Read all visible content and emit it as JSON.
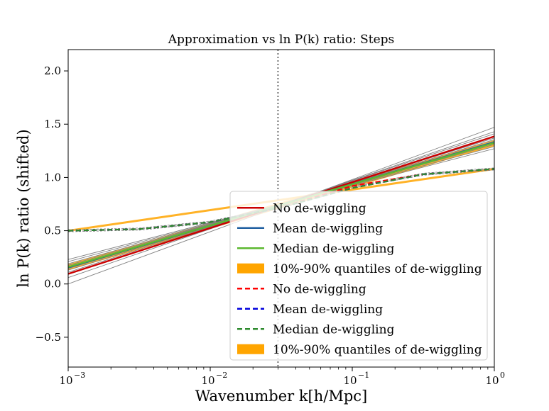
{
  "chart_data": {
    "type": "line",
    "title": "Approximation vs ln P(k) ratio: Steps",
    "xlabel": "Wavenumber k[h/Mpc]",
    "ylabel": "ln P(k) ratio (shifted)",
    "xscale": "log",
    "xlim": [
      0.001,
      1.0
    ],
    "ylim": [
      -0.78,
      2.2
    ],
    "x_ticks": [
      {
        "value": 0.001,
        "base": "10",
        "exp": "−3"
      },
      {
        "value": 0.01,
        "base": "10",
        "exp": "−2"
      },
      {
        "value": 0.1,
        "base": "10",
        "exp": "−1"
      },
      {
        "value": 1.0,
        "base": "10",
        "exp": "0"
      }
    ],
    "y_ticks": [
      {
        "value": -0.5,
        "label": "−0.5"
      },
      {
        "value": 0.0,
        "label": "0.0"
      },
      {
        "value": 0.5,
        "label": "0.5"
      },
      {
        "value": 1.0,
        "label": "1.0"
      },
      {
        "value": 1.5,
        "label": "1.5"
      },
      {
        "value": 2.0,
        "label": "2.0"
      }
    ],
    "vline": {
      "x": 0.03,
      "style": "dotted",
      "color": "#7f7f7f"
    },
    "samples": {
      "color": "#808080",
      "log10k": [
        -3,
        0
      ],
      "lines": [
        [
          0.0,
          1.47
        ],
        [
          0.06,
          1.43
        ],
        [
          0.09,
          1.41
        ],
        [
          0.11,
          1.39
        ],
        [
          0.13,
          1.37
        ],
        [
          0.145,
          1.355
        ],
        [
          0.16,
          1.34
        ],
        [
          0.175,
          1.325
        ],
        [
          0.19,
          1.31
        ],
        [
          0.21,
          1.29
        ],
        [
          0.23,
          1.27
        ]
      ]
    },
    "series": [
      {
        "name": "No de-wiggling",
        "color": "#cc0000",
        "dash": "solid",
        "log10k": [
          -3,
          0
        ],
        "values": [
          0.095,
          1.385
        ]
      },
      {
        "name": "Mean de-wiggling",
        "color": "#1f5fa0",
        "dash": "solid",
        "log10k": [
          -3,
          0
        ],
        "values": [
          0.155,
          1.33
        ]
      },
      {
        "name": "Median de-wiggling",
        "color": "#5cb82f",
        "dash": "solid",
        "log10k": [
          -3,
          0
        ],
        "values": [
          0.16,
          1.325
        ]
      },
      {
        "name": "10%-90% quantiles of de-wiggling",
        "color": "#ffa500",
        "kind": "band",
        "log10k": [
          -3,
          0
        ],
        "lower": [
          0.13,
          1.295
        ],
        "upper": [
          0.185,
          1.35
        ]
      },
      {
        "name": "No de-wiggling",
        "color": "#ff0000",
        "dash": "dashed",
        "log10k": [
          -3,
          -2.5,
          -2,
          -1.5,
          -1,
          -0.5,
          0
        ],
        "values": [
          0.5,
          0.515,
          0.58,
          0.72,
          0.92,
          1.03,
          1.08
        ]
      },
      {
        "name": "Mean de-wiggling",
        "color": "#0000dd",
        "dash": "dashed",
        "log10k": [
          -3,
          -2.5,
          -2,
          -1.5,
          -1,
          -0.5,
          0
        ],
        "values": [
          0.5,
          0.515,
          0.58,
          0.72,
          0.9,
          1.03,
          1.08
        ]
      },
      {
        "name": "Median de-wiggling",
        "color": "#2e8b2e",
        "dash": "dashed",
        "log10k": [
          -3,
          -2.5,
          -2,
          -1.5,
          -1,
          -0.5,
          0
        ],
        "values": [
          0.5,
          0.515,
          0.58,
          0.72,
          0.9,
          1.03,
          1.08
        ]
      },
      {
        "name": "10%-90% quantiles of de-wiggling",
        "color": "#ffa500",
        "kind": "band",
        "log10k": [
          -3,
          0
        ],
        "lower": [
          0.49,
          1.07
        ],
        "upper": [
          0.51,
          1.09
        ]
      }
    ],
    "legend": {
      "location": "lower-right",
      "entries": [
        {
          "label": "No de-wiggling",
          "kind": "line",
          "color": "#cc0000",
          "dash": "solid"
        },
        {
          "label": "Mean de-wiggling",
          "kind": "line",
          "color": "#1f5fa0",
          "dash": "solid"
        },
        {
          "label": "Median de-wiggling",
          "kind": "line",
          "color": "#5cb82f",
          "dash": "solid"
        },
        {
          "label": "10%-90% quantiles of de-wiggling",
          "kind": "patch",
          "color": "#ffa500",
          "dash": "solid"
        },
        {
          "label": "No de-wiggling",
          "kind": "line",
          "color": "#ff0000",
          "dash": "dashed"
        },
        {
          "label": "Mean de-wiggling",
          "kind": "line",
          "color": "#0000dd",
          "dash": "dashed"
        },
        {
          "label": "Median de-wiggling",
          "kind": "line",
          "color": "#2e8b2e",
          "dash": "dashed"
        },
        {
          "label": "10%-90% quantiles of de-wiggling",
          "kind": "patch",
          "color": "#ffa500",
          "dash": "solid"
        }
      ]
    }
  }
}
